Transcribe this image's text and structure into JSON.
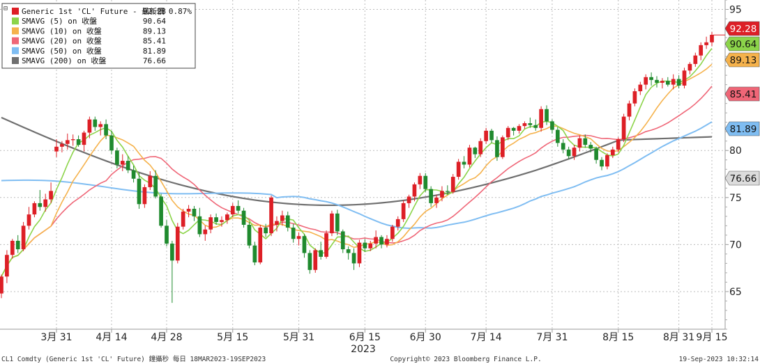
{
  "chart_data": {
    "type": "candlestick",
    "x_tick_labels": [
      "3月 31",
      "4月 14",
      "4月 28",
      "5月 15",
      "5月 31",
      "6月 15",
      "6月 30",
      "7月 14",
      "7月 31",
      "8月 15",
      "8月 31",
      "9月 15"
    ],
    "year_label": "2023",
    "y_ticks": [
      65,
      70,
      75,
      80,
      95
    ],
    "ylim": [
      61,
      96
    ],
    "legend": [
      {
        "name": "Generic 1st 'CL' Future - 最新價",
        "value": "92.28",
        "change": "0.87%",
        "color": "#dd1f26"
      },
      {
        "name": "SMAVG (5)  on 收盤",
        "value": "90.64",
        "color": "#8cd44a"
      },
      {
        "name": "SMAVG (10)  on 收盤",
        "value": "89.13",
        "color": "#f5b24c"
      },
      {
        "name": "SMAVG (20)  on 收盤",
        "value": "85.41",
        "color": "#ef6677"
      },
      {
        "name": "SMAVG (50)  on 收盤",
        "value": "81.89",
        "color": "#7fbdf2"
      },
      {
        "name": "SMAVG (200)  on 收盤",
        "value": "76.66",
        "color": "#6f6f6f"
      }
    ],
    "last_value_badges": [
      {
        "value": "92.28",
        "color": "#dd1f26",
        "text_color": "#ffffff"
      },
      {
        "value": "90.64",
        "color": "#8cd44a",
        "text_color": "#111111"
      },
      {
        "value": "89.13",
        "color": "#f5b24c",
        "text_color": "#111111"
      },
      {
        "value": "85.41",
        "color": "#ef6677",
        "text_color": "#111111"
      },
      {
        "value": "81.89",
        "color": "#7fbdf2",
        "text_color": "#111111"
      },
      {
        "value": "76.66",
        "color": "#dcdcdc",
        "text_color": "#111111"
      }
    ],
    "up_color": "#dd1f26",
    "down_color": "#1f8a2e",
    "ohlc": [
      [
        64.8,
        66.8,
        64.3,
        66.6
      ],
      [
        66.6,
        69.4,
        65.9,
        68.9
      ],
      [
        68.9,
        70.6,
        68.5,
        70.4
      ],
      [
        70.4,
        71.0,
        69.1,
        69.5
      ],
      [
        69.5,
        72.4,
        69.3,
        72.0
      ],
      [
        72.0,
        74.0,
        71.6,
        73.2
      ],
      [
        73.2,
        74.6,
        72.9,
        74.4
      ],
      [
        74.4,
        75.8,
        73.6,
        74.0
      ],
      [
        74.0,
        75.4,
        73.5,
        74.8
      ],
      [
        74.8,
        76.6,
        74.4,
        75.7
      ],
      [
        79.9,
        81.2,
        79.3,
        80.4
      ],
      [
        80.4,
        81.0,
        79.8,
        80.7
      ],
      [
        80.7,
        81.8,
        80.1,
        81.1
      ],
      [
        81.1,
        81.7,
        80.5,
        81.2
      ],
      [
        81.2,
        81.6,
        80.4,
        80.6
      ],
      [
        80.6,
        82.1,
        79.9,
        81.9
      ],
      [
        81.9,
        83.6,
        81.3,
        83.3
      ],
      [
        83.3,
        83.6,
        82.1,
        82.5
      ],
      [
        82.5,
        83.1,
        81.6,
        82.8
      ],
      [
        82.8,
        83.3,
        81.2,
        81.6
      ],
      [
        81.6,
        82.1,
        79.6,
        80.0
      ],
      [
        80.0,
        80.3,
        78.1,
        78.5
      ],
      [
        78.5,
        79.6,
        77.8,
        78.9
      ],
      [
        78.9,
        79.4,
        77.6,
        77.9
      ],
      [
        77.9,
        78.4,
        76.6,
        77.0
      ],
      [
        77.0,
        77.6,
        73.8,
        74.3
      ],
      [
        74.3,
        76.4,
        73.9,
        76.1
      ],
      [
        76.1,
        77.8,
        75.8,
        77.3
      ],
      [
        77.3,
        77.9,
        74.9,
        75.1
      ],
      [
        75.1,
        75.4,
        71.8,
        72.0
      ],
      [
        72.0,
        72.6,
        69.8,
        70.1
      ],
      [
        70.1,
        70.4,
        63.8,
        68.3
      ],
      [
        68.3,
        72.3,
        68.0,
        71.9
      ],
      [
        71.9,
        73.8,
        71.6,
        73.5
      ],
      [
        73.5,
        74.2,
        72.9,
        73.8
      ],
      [
        73.8,
        74.1,
        72.5,
        73.0
      ],
      [
        73.0,
        73.9,
        70.8,
        71.1
      ],
      [
        71.1,
        72.0,
        70.4,
        71.6
      ],
      [
        71.6,
        73.2,
        71.2,
        72.9
      ],
      [
        72.9,
        73.3,
        72.1,
        72.4
      ],
      [
        72.4,
        73.0,
        71.9,
        72.6
      ],
      [
        72.6,
        73.4,
        72.2,
        73.2
      ],
      [
        73.2,
        74.4,
        72.9,
        74.1
      ],
      [
        74.1,
        74.7,
        73.3,
        73.6
      ],
      [
        73.6,
        73.9,
        71.8,
        72.1
      ],
      [
        72.1,
        72.4,
        69.6,
        69.9
      ],
      [
        69.9,
        70.3,
        67.8,
        68.1
      ],
      [
        68.1,
        72.1,
        67.9,
        71.8
      ],
      [
        71.8,
        72.2,
        70.8,
        71.2
      ],
      [
        71.2,
        75.2,
        70.9,
        75.0
      ],
      [
        72.1,
        73.0,
        71.4,
        72.5
      ],
      [
        72.5,
        73.6,
        72.0,
        73.1
      ],
      [
        73.1,
        73.5,
        71.4,
        71.8
      ],
      [
        71.8,
        72.2,
        70.2,
        70.6
      ],
      [
        70.6,
        71.3,
        69.9,
        70.9
      ],
      [
        70.9,
        71.1,
        68.6,
        69.1
      ],
      [
        69.1,
        69.4,
        66.9,
        67.3
      ],
      [
        67.3,
        69.6,
        67.0,
        69.4
      ],
      [
        69.4,
        70.3,
        68.4,
        68.7
      ],
      [
        68.7,
        71.5,
        68.5,
        71.2
      ],
      [
        71.2,
        73.6,
        70.9,
        73.3
      ],
      [
        73.3,
        73.7,
        71.0,
        71.4
      ],
      [
        71.4,
        71.6,
        69.1,
        69.5
      ],
      [
        69.5,
        69.8,
        68.4,
        69.1
      ],
      [
        69.1,
        69.6,
        67.3,
        68.0
      ],
      [
        68.0,
        70.5,
        67.6,
        70.2
      ],
      [
        70.2,
        70.6,
        69.2,
        69.6
      ],
      [
        69.6,
        70.4,
        69.3,
        70.1
      ],
      [
        70.1,
        71.5,
        69.6,
        70.8
      ],
      [
        70.8,
        71.0,
        69.6,
        70.0
      ],
      [
        70.0,
        71.0,
        69.7,
        70.6
      ],
      [
        70.6,
        72.1,
        70.3,
        71.9
      ],
      [
        71.9,
        73.0,
        71.5,
        72.7
      ],
      [
        72.7,
        74.7,
        72.4,
        74.4
      ],
      [
        74.4,
        75.3,
        73.9,
        75.1
      ],
      [
        75.1,
        76.6,
        74.6,
        76.4
      ],
      [
        76.4,
        77.6,
        75.9,
        77.3
      ],
      [
        77.3,
        77.6,
        75.6,
        75.9
      ],
      [
        75.9,
        76.2,
        74.0,
        74.4
      ],
      [
        74.4,
        75.3,
        73.9,
        75.0
      ],
      [
        75.0,
        76.2,
        74.6,
        75.7
      ],
      [
        75.7,
        76.3,
        75.3,
        75.6
      ],
      [
        75.6,
        77.5,
        75.4,
        77.2
      ],
      [
        77.2,
        79.1,
        76.9,
        78.8
      ],
      [
        78.8,
        79.4,
        78.1,
        78.5
      ],
      [
        78.5,
        80.6,
        78.2,
        80.3
      ],
      [
        80.3,
        80.4,
        79.2,
        79.6
      ],
      [
        79.6,
        81.3,
        79.3,
        81.0
      ],
      [
        81.0,
        82.4,
        80.7,
        82.1
      ],
      [
        82.1,
        82.3,
        80.8,
        81.1
      ],
      [
        81.1,
        81.5,
        78.9,
        79.3
      ],
      [
        79.3,
        81.6,
        79.1,
        81.4
      ],
      [
        81.4,
        82.6,
        81.1,
        82.4
      ],
      [
        82.4,
        82.5,
        81.6,
        82.1
      ],
      [
        82.1,
        82.8,
        81.8,
        82.6
      ],
      [
        82.6,
        83.1,
        82.3,
        82.9
      ],
      [
        82.9,
        83.5,
        82.4,
        82.7
      ],
      [
        82.7,
        83.3,
        82.1,
        82.4
      ],
      [
        82.4,
        84.7,
        82.0,
        84.4
      ],
      [
        84.4,
        84.8,
        82.7,
        83.1
      ],
      [
        83.1,
        83.3,
        81.8,
        82.2
      ],
      [
        82.2,
        82.5,
        80.4,
        80.8
      ],
      [
        80.8,
        81.2,
        79.7,
        80.1
      ],
      [
        80.1,
        80.4,
        79.1,
        79.4
      ],
      [
        79.4,
        80.6,
        79.0,
        80.3
      ],
      [
        80.3,
        81.6,
        79.9,
        81.3
      ],
      [
        81.3,
        81.7,
        80.3,
        80.6
      ],
      [
        80.6,
        80.9,
        79.8,
        80.2
      ],
      [
        80.2,
        80.4,
        78.6,
        79.0
      ],
      [
        79.0,
        79.3,
        77.9,
        78.3
      ],
      [
        78.3,
        79.7,
        78.0,
        79.5
      ],
      [
        79.5,
        80.4,
        79.2,
        80.1
      ],
      [
        80.1,
        81.4,
        79.8,
        81.2
      ],
      [
        81.2,
        83.9,
        80.9,
        83.6
      ],
      [
        83.6,
        85.3,
        83.2,
        85.0
      ],
      [
        85.0,
        86.6,
        84.7,
        86.3
      ],
      [
        86.3,
        87.3,
        85.9,
        87.0
      ],
      [
        87.0,
        88.1,
        86.5,
        87.8
      ],
      [
        87.8,
        88.3,
        86.9,
        87.5
      ],
      [
        87.5,
        87.9,
        86.7,
        87.2
      ],
      [
        87.2,
        87.7,
        86.6,
        87.4
      ],
      [
        87.4,
        87.8,
        86.8,
        87.0
      ],
      [
        87.0,
        88.1,
        86.5,
        87.6
      ],
      [
        87.6,
        88.0,
        86.6,
        86.9
      ],
      [
        86.9,
        88.8,
        86.6,
        88.5
      ],
      [
        88.5,
        89.4,
        88.1,
        89.2
      ],
      [
        89.2,
        90.4,
        88.9,
        90.1
      ],
      [
        90.1,
        91.5,
        89.6,
        91.2
      ],
      [
        91.2,
        92.1,
        90.8,
        91.5
      ],
      [
        91.5,
        92.6,
        91.1,
        92.3
      ]
    ]
  },
  "footer": {
    "left": "CL1 Comdty (Generic 1st 'CL' Future) 鐘攝秒  每日 18MAR2023-19SEP2023",
    "center": "Copyright© 2023 Bloomberg Finance L.P.",
    "right": "19-Sep-2023 10:32:14"
  }
}
